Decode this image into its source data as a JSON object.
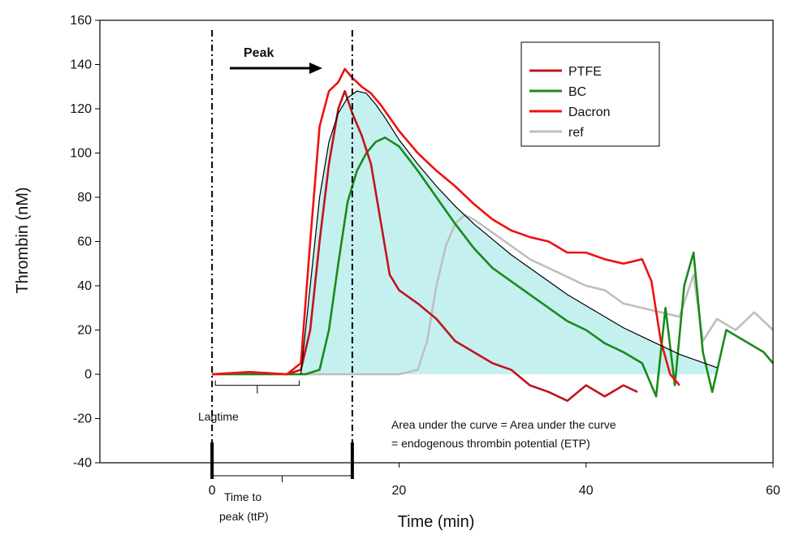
{
  "chart_data": {
    "type": "line",
    "xlabel": "Time (min)",
    "ylabel": "Thrombin (nM)",
    "xlim": [
      -12,
      60
    ],
    "ylim": [
      -40,
      160
    ],
    "x_ticks": [
      0,
      20,
      40,
      60
    ],
    "y_ticks": [
      -40,
      -20,
      0,
      20,
      40,
      60,
      80,
      100,
      120,
      140,
      160
    ],
    "grid": false,
    "legend_position": "top-right",
    "series": [
      {
        "name": "PTFE",
        "color": "#c0141e",
        "x": [
          0,
          4,
          8,
          9.5,
          10.5,
          11.5,
          12.5,
          13.5,
          14.2,
          15,
          16,
          17,
          18,
          19,
          20,
          22,
          24,
          26,
          28,
          30,
          32,
          34,
          36,
          38,
          40,
          42,
          44,
          45.5
        ],
        "y": [
          0,
          1,
          0,
          2,
          20,
          60,
          95,
          120,
          128,
          118,
          108,
          95,
          70,
          45,
          38,
          32,
          25,
          15,
          10,
          5,
          2,
          -5,
          -8,
          -12,
          -5,
          -10,
          -5,
          -8
        ]
      },
      {
        "name": "BC",
        "color": "#1a8a1a",
        "x": [
          0,
          8,
          10,
          11.5,
          12.5,
          13.5,
          14.5,
          15.5,
          16.5,
          17.5,
          18.5,
          20,
          22,
          24,
          26,
          28,
          30,
          32,
          34,
          36,
          38,
          40,
          42,
          44,
          46,
          47.5,
          48.5,
          49.5,
          50.5,
          51.5,
          52.5,
          53.5,
          55,
          57,
          59,
          60
        ],
        "y": [
          0,
          0,
          0,
          2,
          20,
          50,
          78,
          92,
          100,
          105,
          107,
          103,
          92,
          80,
          68,
          57,
          48,
          42,
          36,
          30,
          24,
          20,
          14,
          10,
          5,
          -10,
          30,
          -5,
          40,
          55,
          10,
          -8,
          20,
          15,
          10,
          5
        ]
      },
      {
        "name": "Dacron",
        "color": "#f01010",
        "x": [
          0,
          4,
          8,
          9.5,
          10.5,
          11.5,
          12.5,
          13.5,
          14.2,
          15,
          16,
          17,
          18,
          20,
          22,
          24,
          26,
          28,
          30,
          32,
          34,
          36,
          38,
          40,
          42,
          44,
          46,
          47,
          48,
          49,
          50
        ],
        "y": [
          0,
          1,
          0,
          5,
          60,
          112,
          128,
          132,
          138,
          134,
          130,
          127,
          122,
          110,
          100,
          92,
          85,
          77,
          70,
          65,
          62,
          60,
          55,
          55,
          52,
          50,
          52,
          42,
          15,
          0,
          -5
        ]
      },
      {
        "name": "ref",
        "color": "#bfbfbf",
        "x": [
          0,
          10,
          20,
          22,
          23,
          24,
          25,
          26,
          27,
          28,
          30,
          32,
          34,
          36,
          38,
          40,
          42,
          44,
          46,
          48,
          50,
          51.5,
          52.5,
          54,
          56,
          58,
          60
        ],
        "y": [
          0,
          0,
          0,
          2,
          15,
          40,
          58,
          68,
          72,
          70,
          64,
          58,
          52,
          48,
          44,
          40,
          38,
          32,
          30,
          28,
          26,
          45,
          15,
          25,
          20,
          28,
          20
        ]
      }
    ],
    "fit_curve": {
      "color": "#000000",
      "x": [
        9.5,
        10.5,
        11.5,
        12.5,
        13.5,
        14.5,
        15.5,
        16.5,
        17.5,
        18.5,
        20,
        22,
        24,
        26,
        28,
        30,
        32,
        34,
        36,
        38,
        40,
        42,
        44,
        46,
        48,
        50,
        52,
        54
      ],
      "y": [
        0,
        40,
        80,
        105,
        118,
        125,
        128,
        127,
        122,
        116,
        106,
        95,
        85,
        76,
        68,
        61,
        54,
        48,
        42,
        36,
        31,
        26,
        21,
        17,
        13,
        9,
        6,
        3
      ]
    },
    "shaded_area_color": "#bfeeee",
    "annotations": {
      "peak": "Peak",
      "lagtime": "Lagtime",
      "time_to_peak_line1": "Time to",
      "time_to_peak_line2": "peak (ttP)",
      "auc_line1": "Area under the curve = Area under the curve",
      "auc_line2": "= endogenous thrombin potential (ETP)"
    },
    "markers": {
      "lagtime_end_x": 9.5,
      "peak_x": 15
    }
  }
}
